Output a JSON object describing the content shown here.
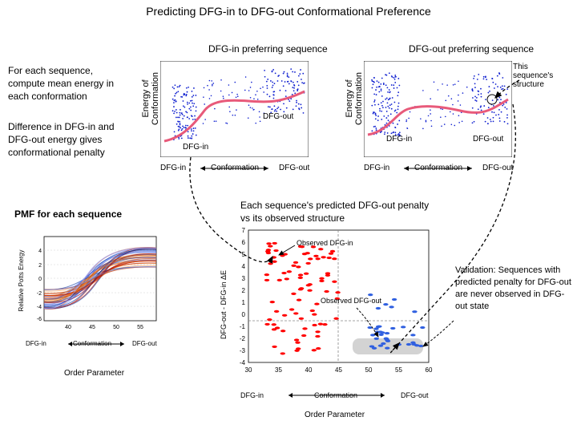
{
  "title": "Predicting DFG-in to DFG-out Conformational Preference",
  "subtitles": {
    "left": "DFG-in preferring sequence",
    "right": "DFG-out preferring sequence"
  },
  "left_text": {
    "p1": "For each sequence, compute mean energy in each conformation",
    "p2": "Difference in DFG-in and DFG-out energy gives conformational penalty"
  },
  "pmf_title": "PMF for each sequence",
  "center_text": "Each sequence's predicted DFG-out penalty vs its observed structure",
  "right_text": "Validation: Sequences with predicted penalty for DFG-out are never observed in DFG-out state",
  "scatter_axes": {
    "ylabel": "Energy of\nConformation",
    "xlabel": "Conformation",
    "xends": {
      "left": "DFG-in",
      "right": "DFG-out"
    }
  },
  "scatter_left": {
    "annot_in": "DFG-in",
    "annot_out": "DFG-out",
    "point_color": "#1020d0",
    "curve_color": "#e85a7a",
    "curve_width": 3,
    "xlim": [
      0,
      100
    ],
    "ylim": [
      0,
      100
    ]
  },
  "scatter_right": {
    "annot_in": "DFG-in",
    "annot_out": "DFG-out",
    "annot_struct": "This sequence's structure",
    "point_color": "#1020d0",
    "curve_color": "#e85a7a",
    "curve_width": 3
  },
  "pmf_chart": {
    "ylabel": "Relative Potts Energy",
    "xlabel": "Conformation",
    "xticks": [
      40,
      45,
      50,
      55
    ],
    "yticks": [
      -6,
      -4,
      -2,
      0,
      2,
      4
    ],
    "xends": {
      "left": "DFG-in",
      "right": "DFG-out"
    },
    "bottom_label": "Order Parameter",
    "line_colors": [
      "#a00000",
      "#c02000",
      "#d84000",
      "#e86000",
      "#f09040",
      "#a0a0f0",
      "#6080f0",
      "#3050d0",
      "#0030a0"
    ],
    "grid_color": "#d0d0d0"
  },
  "penalty_chart": {
    "ylabel": "DFG-out - DFG-in ΔE",
    "xlabel": "Conformation",
    "xticks": [
      30,
      35,
      40,
      45,
      50,
      55,
      60
    ],
    "yticks": [
      -4,
      -3,
      -2,
      -1,
      0,
      1,
      2,
      3,
      4,
      5,
      6,
      7
    ],
    "xends": {
      "left": "DFG-in",
      "right": "DFG-out"
    },
    "bottom_label": "Order Parameter",
    "red_color": "#ff0000",
    "blue_color": "#3060e0",
    "box_fill": "#c0c0c0",
    "grid_color": "#d0d0d0",
    "annot_in": "Observed DFG-in",
    "annot_out": "Observed DFG-out"
  }
}
